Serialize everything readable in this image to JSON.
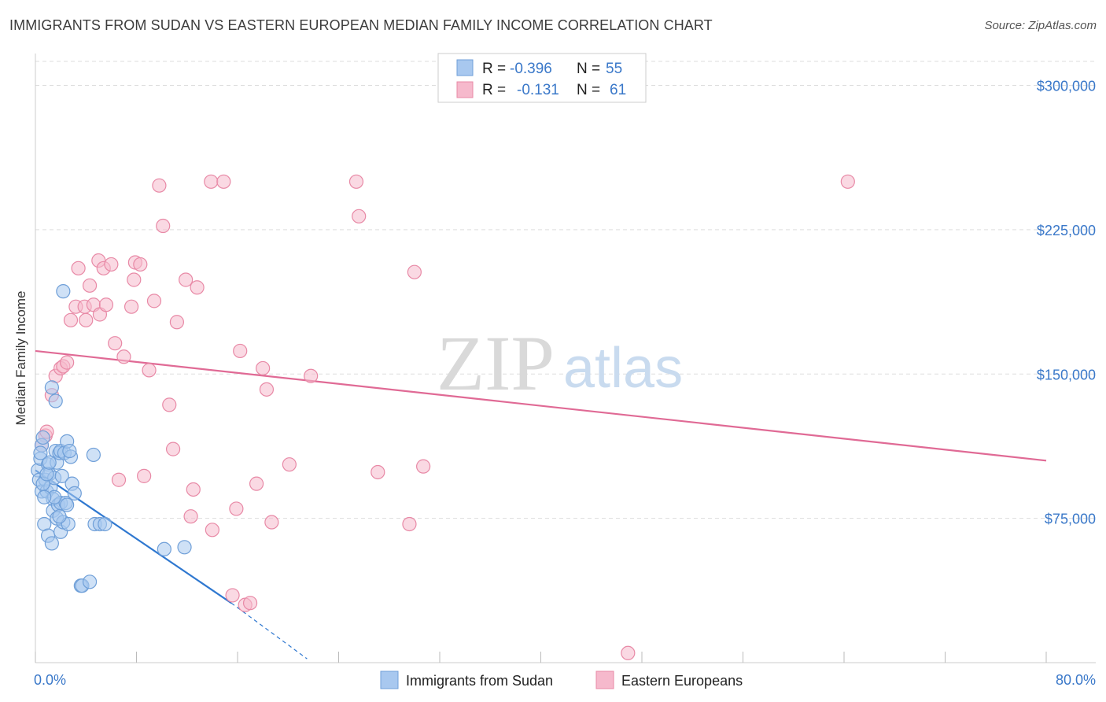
{
  "title": "IMMIGRANTS FROM SUDAN VS EASTERN EUROPEAN MEDIAN FAMILY INCOME CORRELATION CHART",
  "source": "Source: ZipAtlas.com",
  "watermark": {
    "zip": "ZIP",
    "atlas": "atlas"
  },
  "colors": {
    "blue_fill": "#a8c8ef",
    "blue_stroke": "#6f9fd8",
    "blue_line": "#2f78d0",
    "pink_fill": "#f6b9cc",
    "pink_stroke": "#e889a6",
    "pink_line": "#e06a95",
    "tick_label": "#3a78c9",
    "grid": "#dddddd"
  },
  "legend_box": {
    "rows": [
      {
        "r_label": "R =",
        "r_value": "-0.396",
        "n_label": "N =",
        "n_value": "55"
      },
      {
        "r_label": "R =",
        "r_value": "-0.131",
        "n_label": "N =",
        "n_value": "61"
      }
    ]
  },
  "chart_data": {
    "type": "scatter",
    "xlabel": "",
    "ylabel": "Median Family Income",
    "xlim": [
      0,
      80
    ],
    "ylim": [
      0,
      312500
    ],
    "x_tick_labels": [
      "0.0%",
      "80.0%"
    ],
    "y_ticks": [
      75000,
      150000,
      225000,
      300000
    ],
    "y_tick_labels": [
      "$75,000",
      "$150,000",
      "$225,000",
      "$300,000"
    ],
    "grid": "horizontal dashed",
    "legend_placement": "bottom-center",
    "series": [
      {
        "name": "Immigrants from Sudan",
        "color": "blue",
        "points": [
          [
            0.2,
            100000
          ],
          [
            0.3,
            95000
          ],
          [
            0.4,
            106000
          ],
          [
            0.5,
            113000
          ],
          [
            0.5,
            89000
          ],
          [
            0.6,
            117000
          ],
          [
            0.7,
            72000
          ],
          [
            0.8,
            95000
          ],
          [
            0.9,
            89000
          ],
          [
            1.0,
            103000
          ],
          [
            1.0,
            66000
          ],
          [
            1.1,
            98000
          ],
          [
            1.2,
            91000
          ],
          [
            1.3,
            143000
          ],
          [
            1.3,
            62000
          ],
          [
            1.4,
            85000
          ],
          [
            1.4,
            79000
          ],
          [
            1.5,
            96000
          ],
          [
            1.6,
            136000
          ],
          [
            1.6,
            110000
          ],
          [
            1.7,
            104000
          ],
          [
            1.7,
            75000
          ],
          [
            1.8,
            82000
          ],
          [
            1.9,
            109000
          ],
          [
            2.0,
            110000
          ],
          [
            2.0,
            83000
          ],
          [
            2.0,
            68000
          ],
          [
            2.1,
            97000
          ],
          [
            2.2,
            73000
          ],
          [
            2.2,
            193000
          ],
          [
            2.3,
            109000
          ],
          [
            2.4,
            83000
          ],
          [
            2.5,
            115000
          ],
          [
            2.5,
            82000
          ],
          [
            2.6,
            72000
          ],
          [
            2.8,
            107000
          ],
          [
            2.9,
            93000
          ],
          [
            3.1,
            88000
          ],
          [
            3.6,
            40000
          ],
          [
            3.7,
            40000
          ],
          [
            4.3,
            42000
          ],
          [
            4.6,
            108000
          ],
          [
            4.7,
            72000
          ],
          [
            5.1,
            72000
          ],
          [
            5.5,
            72000
          ],
          [
            10.2,
            59000
          ],
          [
            11.8,
            60000
          ],
          [
            0.6,
            93000
          ],
          [
            0.9,
            98000
          ],
          [
            1.1,
            104000
          ],
          [
            1.5,
            86000
          ],
          [
            0.4,
            109000
          ],
          [
            2.7,
            110000
          ],
          [
            0.7,
            86000
          ],
          [
            1.9,
            76000
          ]
        ]
      },
      {
        "name": "Eastern Europeans",
        "color": "pink",
        "points": [
          [
            0.8,
            118000
          ],
          [
            0.9,
            120000
          ],
          [
            1.3,
            139000
          ],
          [
            1.6,
            149000
          ],
          [
            2.0,
            153000
          ],
          [
            2.2,
            154000
          ],
          [
            2.5,
            156000
          ],
          [
            2.8,
            178000
          ],
          [
            3.2,
            185000
          ],
          [
            3.4,
            205000
          ],
          [
            3.9,
            185000
          ],
          [
            4.0,
            178000
          ],
          [
            4.3,
            196000
          ],
          [
            4.6,
            186000
          ],
          [
            5.0,
            209000
          ],
          [
            5.1,
            181000
          ],
          [
            5.4,
            205000
          ],
          [
            5.6,
            186000
          ],
          [
            6.0,
            207000
          ],
          [
            6.3,
            166000
          ],
          [
            6.6,
            95000
          ],
          [
            7.0,
            159000
          ],
          [
            7.6,
            185000
          ],
          [
            7.8,
            199000
          ],
          [
            7.9,
            208000
          ],
          [
            8.3,
            207000
          ],
          [
            8.6,
            97000
          ],
          [
            9.0,
            152000
          ],
          [
            9.4,
            188000
          ],
          [
            9.8,
            248000
          ],
          [
            10.1,
            227000
          ],
          [
            10.6,
            134000
          ],
          [
            10.9,
            111000
          ],
          [
            11.2,
            177000
          ],
          [
            11.9,
            199000
          ],
          [
            12.3,
            76000
          ],
          [
            12.5,
            90000
          ],
          [
            12.8,
            195000
          ],
          [
            13.9,
            250000
          ],
          [
            14.0,
            69000
          ],
          [
            14.9,
            250000
          ],
          [
            15.6,
            35000
          ],
          [
            15.9,
            80000
          ],
          [
            16.2,
            162000
          ],
          [
            16.6,
            30000
          ],
          [
            17.0,
            31000
          ],
          [
            17.5,
            93000
          ],
          [
            18.0,
            153000
          ],
          [
            18.3,
            142000
          ],
          [
            18.7,
            73000
          ],
          [
            20.1,
            103000
          ],
          [
            21.8,
            149000
          ],
          [
            25.4,
            250000
          ],
          [
            25.6,
            232000
          ],
          [
            27.1,
            99000
          ],
          [
            29.6,
            72000
          ],
          [
            30.0,
            203000
          ],
          [
            30.7,
            102000
          ],
          [
            46.9,
            5000
          ],
          [
            64.3,
            250000
          ],
          [
            0.5,
            113000
          ]
        ]
      }
    ],
    "trend_lines": [
      {
        "series": "Immigrants from Sudan",
        "x": [
          0,
          15.5
        ],
        "y": [
          100000,
          31000
        ],
        "dashed_extension_x": [
          15.5,
          21.5
        ],
        "dashed_extension_y": [
          31000,
          2000
        ]
      },
      {
        "series": "Eastern Europeans",
        "x": [
          0,
          80
        ],
        "y": [
          162000,
          105000
        ]
      }
    ]
  }
}
